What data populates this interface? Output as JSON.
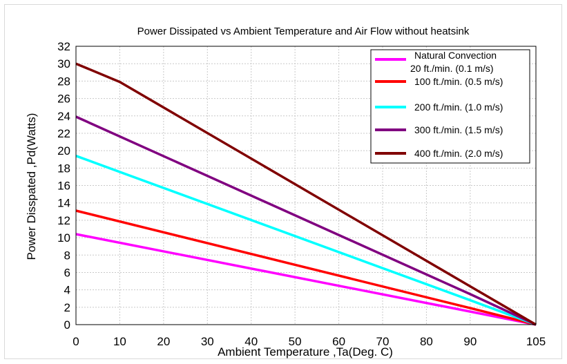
{
  "chart_data": {
    "type": "line",
    "title": "Power Dissipated vs Ambient Temperature and Air Flow without heatsink",
    "xlabel": "Ambient Temperature ,Ta(Deg. C)",
    "ylabel": "Power Disspated ,Pd(Watts)",
    "xlim": [
      0,
      105
    ],
    "ylim": [
      0,
      32
    ],
    "x_ticks": [
      "0",
      "10",
      "20",
      "30",
      "40",
      "50",
      "60",
      "70",
      "80",
      "90",
      "105"
    ],
    "y_ticks": [
      "0",
      "2",
      "4",
      "6",
      "8",
      "10",
      "12",
      "14",
      "16",
      "18",
      "20",
      "22",
      "24",
      "26",
      "28",
      "30",
      "32"
    ],
    "grid": true,
    "legend_position": "top-right",
    "series": [
      {
        "name": "Natural Convection 20 ft./min. (0.1 m/s)",
        "color": "#ff00ff",
        "x": [
          0,
          90,
          105
        ],
        "y": [
          10.4,
          1.5,
          0
        ]
      },
      {
        "name": "100 ft./min. (0.5 m/s)",
        "color": "#ff0000",
        "x": [
          0,
          90,
          105
        ],
        "y": [
          13.1,
          1.9,
          0
        ]
      },
      {
        "name": "200 ft./min. (1.0 m/s)",
        "color": "#00ffff",
        "x": [
          0,
          90,
          105
        ],
        "y": [
          19.4,
          2.8,
          0
        ]
      },
      {
        "name": "300 ft./min. (1.5 m/s)",
        "color": "#800080",
        "x": [
          0,
          90,
          105
        ],
        "y": [
          23.9,
          3.5,
          0
        ]
      },
      {
        "name": "400 ft./min. (2.0 m/s)",
        "color": "#800000",
        "x": [
          0,
          10,
          90,
          105
        ],
        "y": [
          30.0,
          27.9,
          4.4,
          0
        ]
      }
    ]
  }
}
